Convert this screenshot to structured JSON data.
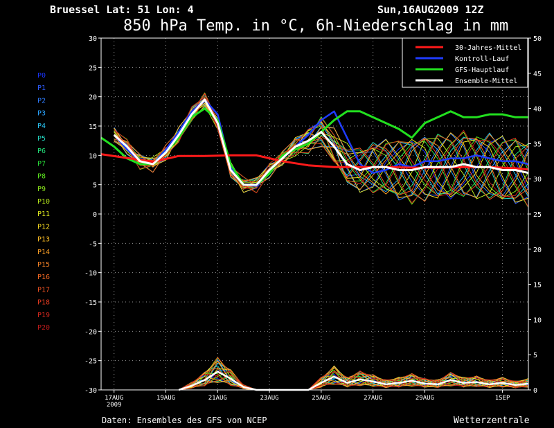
{
  "header": {
    "location": "Bruessel  Lat: 51 Lon: 4",
    "run": "Sun,16AUG2009 12Z",
    "title": "850 hPa Temp. in °C, 6h-Niederschlag in mm"
  },
  "footer": {
    "source": "Daten: Ensembles des GFS von NCEP",
    "brand": "Wetterzentrale"
  },
  "colors": {
    "background": "#000000",
    "frame": "#ffffff",
    "grid": "#9a9a9a",
    "axis_text": "#ffffff",
    "climate_mean": "#ff1a1a",
    "control_run": "#1f3cff",
    "gfs_main": "#22e01f",
    "ensemble_mean": "#ffffff"
  },
  "chart_data": {
    "type": "line",
    "y_left": {
      "label": "",
      "ticks": [
        30,
        25,
        20,
        15,
        10,
        5,
        0,
        -5,
        -10,
        -15,
        -20,
        -25,
        -30
      ],
      "range": [
        -30,
        30
      ]
    },
    "y_right": {
      "label": "",
      "ticks": [
        50,
        45,
        40,
        35,
        30,
        25,
        20,
        15,
        10,
        5,
        0
      ],
      "range": [
        0,
        50
      ]
    },
    "x": {
      "range": [
        0,
        16.5
      ],
      "ticks": [
        {
          "day": 0.5,
          "label": "17AUG",
          "sublabel": "2009"
        },
        {
          "day": 2.5,
          "label": "19AUG",
          "sublabel": ""
        },
        {
          "day": 4.5,
          "label": "21AUG",
          "sublabel": ""
        },
        {
          "day": 6.5,
          "label": "23AUG",
          "sublabel": ""
        },
        {
          "day": 8.5,
          "label": "25AUG",
          "sublabel": ""
        },
        {
          "day": 10.5,
          "label": "27AUG",
          "sublabel": ""
        },
        {
          "day": 12.5,
          "label": "29AUG",
          "sublabel": ""
        },
        {
          "day": 15.5,
          "label": "1SEP",
          "sublabel": ""
        }
      ]
    },
    "legend": {
      "placement": "top-right",
      "items": [
        {
          "label": "30-Jahres-Mittel",
          "color": "#ff1a1a"
        },
        {
          "label": "Kontroll-Lauf",
          "color": "#1f3cff"
        },
        {
          "label": "GFS-Hauptlauf",
          "color": "#22e01f"
        },
        {
          "label": "Ensemble-Mittel",
          "color": "#ffffff"
        }
      ]
    },
    "members": [
      {
        "name": "P0",
        "color": "#1a34ff"
      },
      {
        "name": "P1",
        "color": "#2e5cff"
      },
      {
        "name": "P2",
        "color": "#2f7dff"
      },
      {
        "name": "P3",
        "color": "#2aa4ff"
      },
      {
        "name": "P4",
        "color": "#29c6f5"
      },
      {
        "name": "P5",
        "color": "#25d9c4"
      },
      {
        "name": "P6",
        "color": "#22e07a"
      },
      {
        "name": "P7",
        "color": "#29e23a"
      },
      {
        "name": "P8",
        "color": "#5ce61f"
      },
      {
        "name": "P9",
        "color": "#8ae61c"
      },
      {
        "name": "P10",
        "color": "#b8ea1c"
      },
      {
        "name": "P11",
        "color": "#e2ec20"
      },
      {
        "name": "P12",
        "color": "#f8dc22"
      },
      {
        "name": "P13",
        "color": "#fbbd25"
      },
      {
        "name": "P14",
        "color": "#fb9f26"
      },
      {
        "name": "P15",
        "color": "#f98426"
      },
      {
        "name": "P16",
        "color": "#f56a24"
      },
      {
        "name": "P17",
        "color": "#ee5222"
      },
      {
        "name": "P18",
        "color": "#e43a20"
      },
      {
        "name": "P19",
        "color": "#d6281e"
      },
      {
        "name": "P20",
        "color": "#c21c1c"
      }
    ],
    "series": [
      {
        "name": "30-Jahres-Mittel",
        "x": [
          0,
          2,
          3,
          4,
          5,
          6,
          7,
          8,
          9,
          10,
          11,
          12,
          13,
          14,
          15,
          16,
          16.5
        ],
        "y": [
          10.2,
          8.9,
          9.9,
          9.9,
          10.0,
          10.0,
          9.0,
          8.3,
          8.0,
          8.0,
          8.0,
          7.9,
          7.9,
          8.0,
          8.0,
          7.8,
          7.6
        ]
      },
      {
        "name": "Kontroll-Lauf",
        "x": [
          0.5,
          1.0,
          1.5,
          2.0,
          2.5,
          3.0,
          3.5,
          4.0,
          4.5,
          5.0,
          5.5,
          6.0,
          6.5,
          7.0,
          7.5,
          8.0,
          8.5,
          9.0,
          9.5,
          10.0,
          10.5,
          11.0,
          11.5,
          12.0,
          12.5,
          13.0,
          13.5,
          14.0,
          14.5,
          15.0,
          15.5,
          16.0,
          16.5
        ],
        "y": [
          13.5,
          11.0,
          9.0,
          8.5,
          11.0,
          14.0,
          17.5,
          19.5,
          17.0,
          8.0,
          5.0,
          4.8,
          7.5,
          9.5,
          11.5,
          13.5,
          16.0,
          17.5,
          13.0,
          8.5,
          7.0,
          7.5,
          8.5,
          8.0,
          9.0,
          9.0,
          9.5,
          9.5,
          10.0,
          9.5,
          9.0,
          9.0,
          8.5
        ]
      },
      {
        "name": "GFS-Hauptlauf",
        "x": [
          0,
          0.5,
          1.0,
          1.5,
          2.0,
          2.5,
          3.0,
          3.5,
          4.0,
          4.5,
          5.0,
          5.5,
          6.0,
          6.5,
          7.0,
          7.5,
          8.0,
          8.5,
          9.0,
          9.5,
          10.0,
          10.5,
          11.0,
          11.5,
          12.0,
          12.5,
          13.0,
          13.5,
          14.0,
          14.5,
          15.0,
          15.5,
          16.0,
          16.5
        ],
        "y": [
          13.0,
          11.5,
          9.5,
          8.5,
          8.5,
          10.5,
          13.0,
          16.5,
          18.0,
          16.0,
          8.5,
          5.0,
          5.0,
          7.0,
          10.0,
          11.0,
          12.0,
          14.0,
          16.0,
          17.5,
          17.5,
          16.5,
          15.5,
          14.5,
          13.0,
          15.5,
          16.5,
          17.5,
          16.5,
          16.5,
          17.0,
          17.0,
          16.5,
          16.5
        ]
      },
      {
        "name": "Ensemble-Mittel",
        "x": [
          0.5,
          1.0,
          1.5,
          2.0,
          2.5,
          3.0,
          3.5,
          4.0,
          4.5,
          5.0,
          5.5,
          6.0,
          6.5,
          7.0,
          7.5,
          8.0,
          8.5,
          9.0,
          9.5,
          10.0,
          10.5,
          11.0,
          11.5,
          12.0,
          12.5,
          13.0,
          13.5,
          14.0,
          14.5,
          15.0,
          15.5,
          16.0,
          16.5
        ],
        "y": [
          13.5,
          11.5,
          9.0,
          8.5,
          10.5,
          13.5,
          17.0,
          19.5,
          15.5,
          7.5,
          5.0,
          5.0,
          7.5,
          9.5,
          11.5,
          12.5,
          14.0,
          11.5,
          8.5,
          7.5,
          8.0,
          8.0,
          7.5,
          7.5,
          8.0,
          8.0,
          8.0,
          8.5,
          8.0,
          8.0,
          7.5,
          7.5,
          7.0
        ]
      }
    ],
    "precip_ensemble_mean": {
      "x": [
        3.0,
        3.5,
        4.0,
        4.5,
        5.0,
        5.5,
        6.0,
        6.5,
        7.0,
        7.5,
        8.0,
        8.5,
        9.0,
        9.5,
        10.0,
        10.5,
        11.0,
        11.5,
        12.0,
        12.5,
        13.0,
        13.5,
        14.0,
        14.5,
        15.0,
        15.5,
        16.0,
        16.5
      ],
      "y": [
        0,
        0.6,
        1.4,
        2.6,
        1.6,
        0.4,
        0,
        0,
        0,
        0,
        0,
        1.0,
        1.9,
        1.0,
        1.5,
        1.2,
        0.8,
        1.0,
        1.3,
        0.9,
        0.8,
        1.4,
        1.0,
        1.1,
        0.8,
        1.0,
        0.7,
        0.9
      ]
    }
  }
}
